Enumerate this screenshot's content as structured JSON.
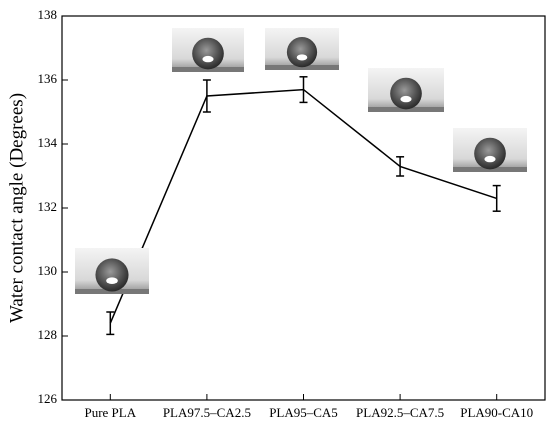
{
  "chart_data": {
    "type": "line",
    "y_label": "Water contact angle (Degrees)",
    "categories": [
      "Pure PLA",
      "PLA97.5–CA2.5",
      "PLA95–CA5",
      "PLA92.5–CA7.5",
      "PLA90-CA10"
    ],
    "values": [
      128.4,
      135.5,
      135.7,
      133.3,
      132.3
    ],
    "errors": [
      0.35,
      0.5,
      0.4,
      0.3,
      0.4
    ],
    "color": "#000000",
    "ylim": [
      126,
      138
    ],
    "yticks": [
      126,
      128,
      130,
      132,
      134,
      136,
      138
    ]
  }
}
